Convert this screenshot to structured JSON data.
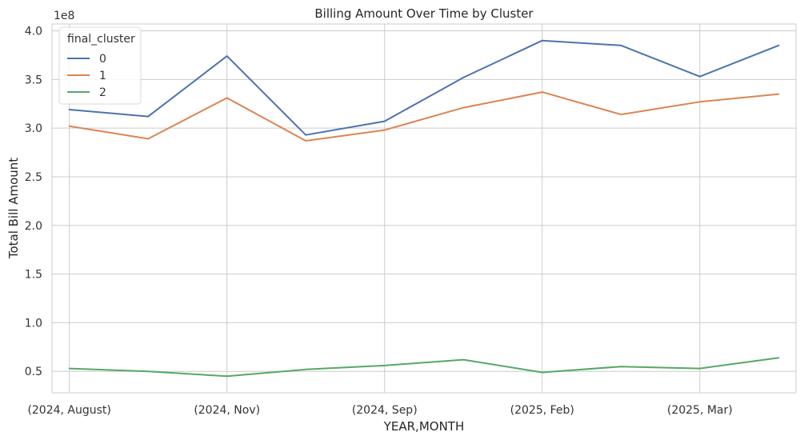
{
  "chart_data": {
    "type": "line",
    "title": "Billing Amount Over Time by Cluster",
    "xlabel": "YEAR,MONTH",
    "ylabel": "Total Bill Amount",
    "y_scale_label": "1e8",
    "x_tick_labels": [
      "(2024, August)",
      "(2024, Nov)",
      "(2024, Sep)",
      "(2025, Feb)",
      "(2025, Mar)"
    ],
    "x_tick_positions": [
      0,
      2,
      4,
      6,
      8
    ],
    "y_ticks": [
      0.5,
      1.0,
      1.5,
      2.0,
      2.5,
      3.0,
      3.5,
      4.0
    ],
    "y_tick_labels": [
      "0.5",
      "1.0",
      "1.5",
      "2.0",
      "2.5",
      "3.0",
      "3.5",
      "4.0"
    ],
    "ylim": [
      0.28,
      4.07
    ],
    "xlim": [
      -0.22,
      9.22
    ],
    "x": [
      0,
      1,
      2,
      3,
      4,
      5,
      6,
      7,
      8,
      9
    ],
    "grid": true,
    "legend": {
      "title": "final_cluster",
      "placement": "top-left"
    },
    "series": [
      {
        "name": "0",
        "color": "#4c72b0",
        "values": [
          3.19,
          3.12,
          3.74,
          2.93,
          3.07,
          3.52,
          3.9,
          3.85,
          3.53,
          3.85
        ]
      },
      {
        "name": "1",
        "color": "#dd8452",
        "values": [
          3.02,
          2.89,
          3.31,
          2.87,
          2.98,
          3.21,
          3.37,
          3.14,
          3.27,
          3.35
        ]
      },
      {
        "name": "2",
        "color": "#55a868",
        "values": [
          0.53,
          0.5,
          0.45,
          0.52,
          0.56,
          0.62,
          0.49,
          0.55,
          0.53,
          0.64
        ]
      }
    ]
  }
}
